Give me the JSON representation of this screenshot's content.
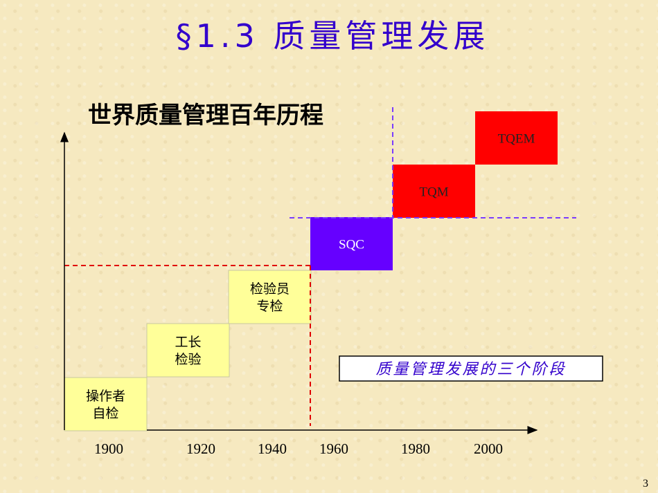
{
  "title": "§1.3  质量管理发展",
  "subtitle": "世界质量管理百年历程",
  "stages": [
    {
      "lines": [
        "操作者",
        "自检"
      ]
    },
    {
      "lines": [
        "工长",
        "检验"
      ]
    },
    {
      "lines": [
        "检验员",
        "专检"
      ]
    },
    {
      "lines": [
        "SQC"
      ]
    },
    {
      "lines": [
        "TQM"
      ]
    },
    {
      "lines": [
        "TQEM"
      ]
    }
  ],
  "years": [
    "1900",
    "1920",
    "1940",
    "1960",
    "1980",
    "2000"
  ],
  "legend": "质量管理发展的三个阶段",
  "page_number": "3"
}
